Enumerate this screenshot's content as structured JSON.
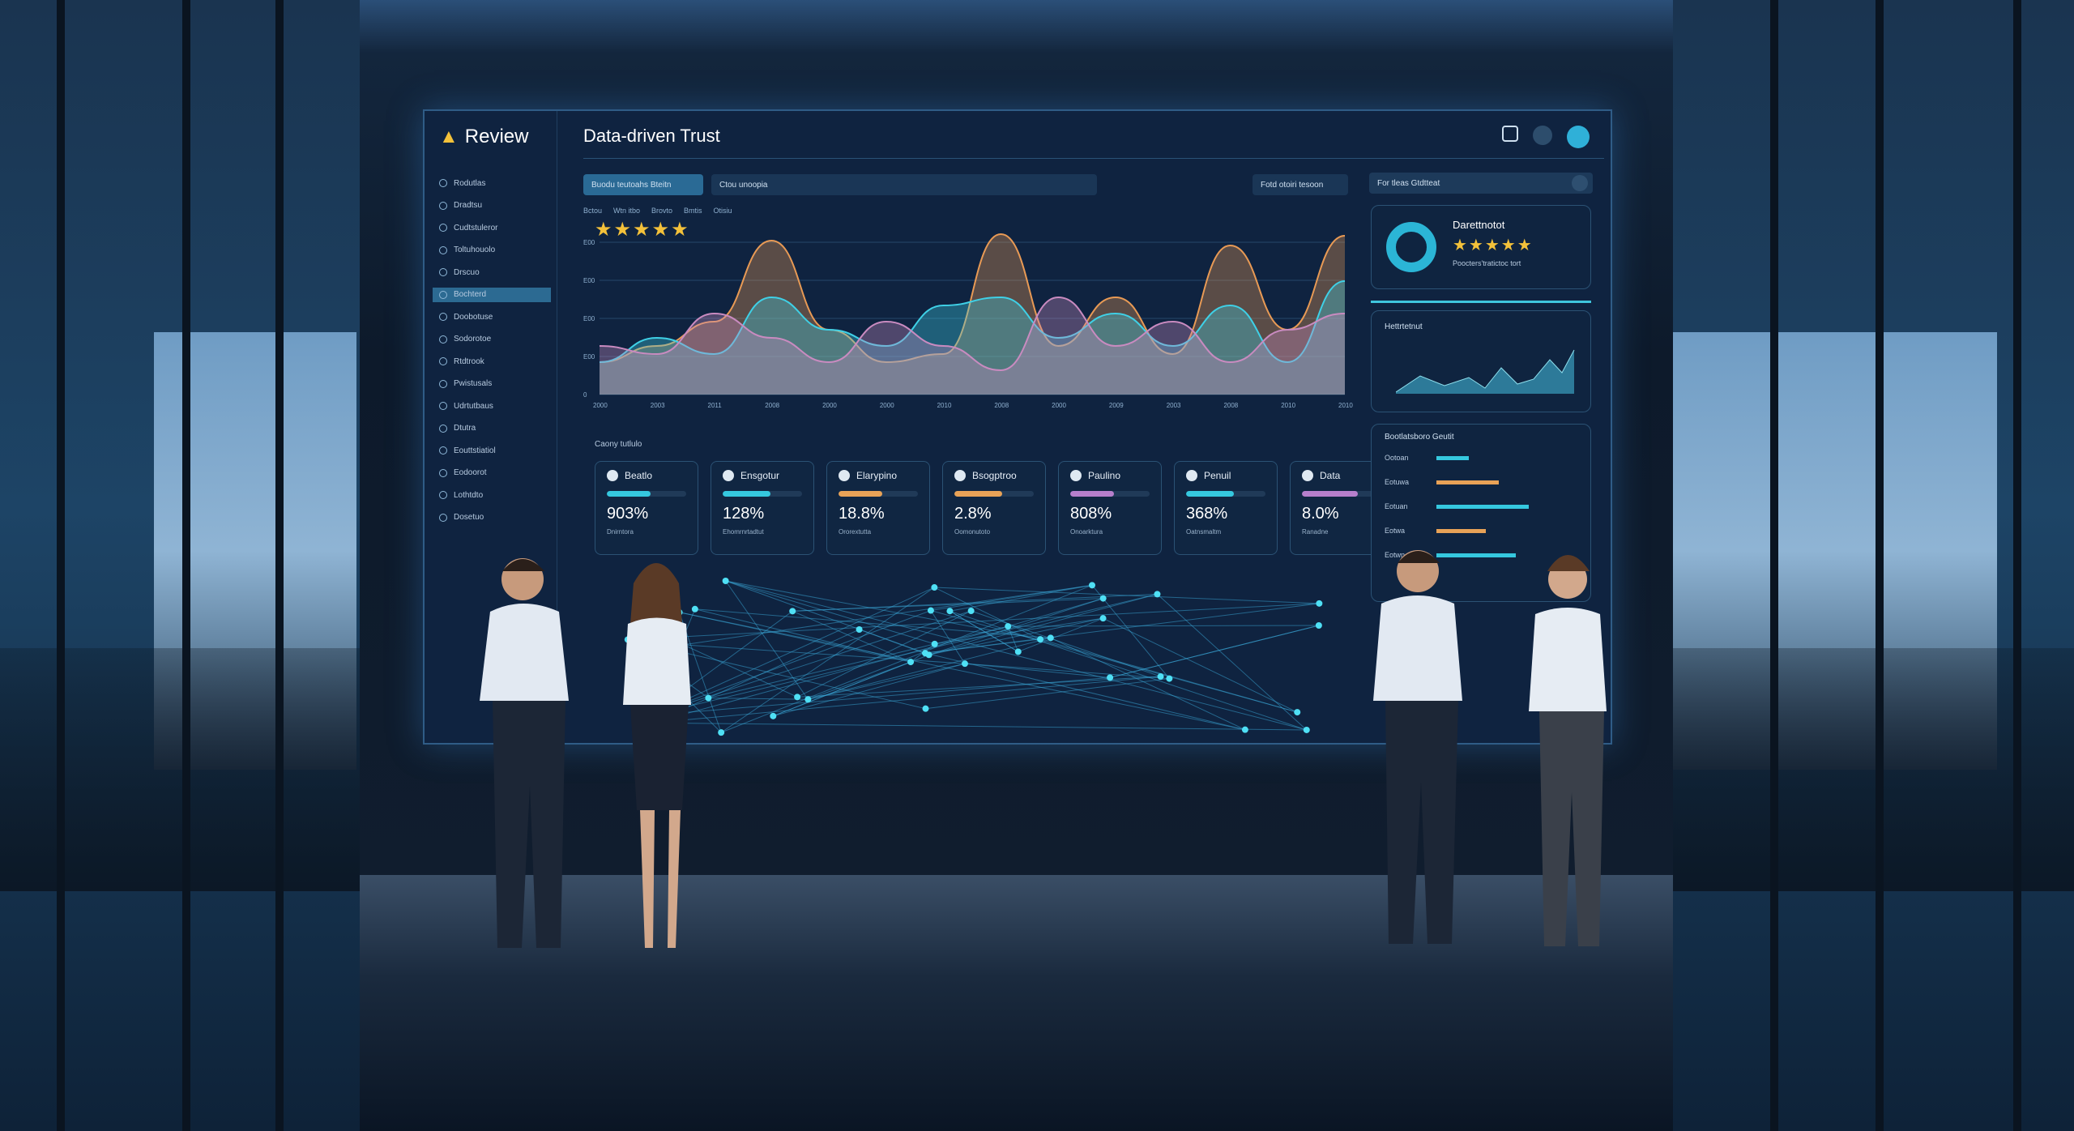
{
  "dashboard": {
    "brand": "Review",
    "title": "Data-driven Trust",
    "sidebar": [
      "Rodutlas",
      "Dradtsu",
      "Cudtstuleror",
      "Toltuhouolo",
      "Drscuo",
      "Bochterd",
      "Doobotuse",
      "Sodorotoe",
      "Rtdtrook",
      "Pwistusals",
      "Udrtutbaus",
      "Dtutra",
      "Eouttstiatiol",
      "Eodoorot",
      "Lothtdto",
      "Dosetuo"
    ],
    "active_sidebar_index": 5,
    "filter_button": "Buodu teutoahs Bteitn",
    "filter_input": "Ctou unoopia",
    "top_button": "Fotd otoiri tesoon",
    "search": "For tleas Gtdtteat",
    "legend": [
      "Bctou",
      "Wtn itbo",
      "Brovto",
      "Bmtis",
      "Otisiu"
    ],
    "rating_stars": 5,
    "chart_data": {
      "type": "area",
      "x": [
        "2000",
        "2003",
        "2011",
        "2008",
        "2000",
        "2000",
        "2010",
        "2008",
        "2000",
        "2009",
        "2003",
        "2008",
        "2010",
        "2010"
      ],
      "yticks": [
        "0",
        "E00",
        "E00",
        "E00",
        "E00"
      ],
      "series": [
        {
          "color": "#e89a55",
          "values": [
            20,
            30,
            45,
            95,
            40,
            20,
            25,
            99,
            30,
            60,
            25,
            92,
            40,
            98
          ]
        },
        {
          "color": "#3fd0e6",
          "values": [
            20,
            35,
            25,
            60,
            40,
            30,
            55,
            60,
            35,
            50,
            30,
            55,
            20,
            70
          ]
        },
        {
          "color": "#c98bc0",
          "values": [
            30,
            25,
            50,
            35,
            20,
            45,
            30,
            15,
            60,
            30,
            45,
            20,
            40,
            50
          ]
        }
      ]
    },
    "section_label": "Caony tutlulo",
    "cards": [
      {
        "name": "Beatlo",
        "pct": "903%",
        "sub": "Dnirntora",
        "fill": 0.55,
        "color": "#35c8df"
      },
      {
        "name": "Ensgotur",
        "pct": "128%",
        "sub": "Ehomrnrtadtut",
        "fill": 0.6,
        "color": "#35c8df"
      },
      {
        "name": "Elarypino",
        "pct": "18.8%",
        "sub": "Ororextutta",
        "fill": 0.55,
        "color": "#e8a257"
      },
      {
        "name": "Bsogptroo",
        "pct": "2.8%",
        "sub": "Oomonutoto",
        "fill": 0.6,
        "color": "#e8a257"
      },
      {
        "name": "Paulino",
        "pct": "808%",
        "sub": "Onoarktura",
        "fill": 0.55,
        "color": "#b67fcc"
      },
      {
        "name": "Penuil",
        "pct": "368%",
        "sub": "Oatnsmaltm",
        "fill": 0.6,
        "color": "#35c8df"
      },
      {
        "name": "Data",
        "pct": "8.0%",
        "sub": "Ranadne",
        "fill": 0.7,
        "color": "#b67fcc"
      }
    ],
    "right": {
      "rating_title": "Darettnotot",
      "rating_stars": 5,
      "rating_sub": "Poocters'tratictoc tort",
      "mini_title": "Hettrtetnut",
      "list_title": "Bootlatsboro Geutit",
      "list_rows": [
        "Ootoan",
        "Eotuwa",
        "Eotuan",
        "Eotwa",
        "Eotwn"
      ]
    }
  },
  "colors": {
    "accent": "#35c8df",
    "orange": "#e8a257",
    "purple": "#b67fcc",
    "star": "#f3c13a"
  }
}
